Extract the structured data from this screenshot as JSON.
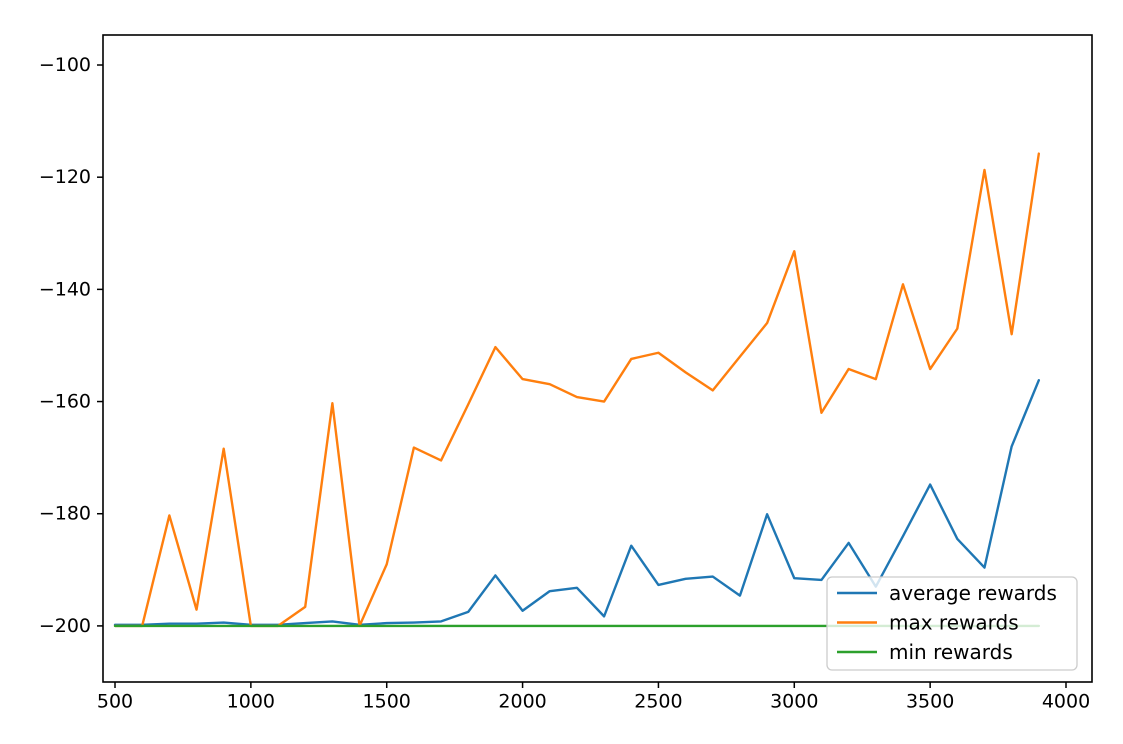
{
  "figure": {
    "background": "#ffffff",
    "title": ""
  },
  "chart_data": {
    "type": "line",
    "title": "",
    "xlabel": "",
    "ylabel": "",
    "grid": false,
    "background": "#ffffff",
    "x": [
      500,
      600,
      700,
      800,
      900,
      1000,
      1100,
      1200,
      1300,
      1400,
      1500,
      1600,
      1700,
      1800,
      1900,
      2000,
      2100,
      2200,
      2300,
      2400,
      2500,
      2600,
      2700,
      2800,
      2900,
      3000,
      3100,
      3200,
      3300,
      3400,
      3500,
      3600,
      3700,
      3800,
      3900
    ],
    "series": [
      {
        "name": "average rewards",
        "color": "#1f77b4",
        "values": [
          -199.8,
          -199.8,
          -199.6,
          -199.6,
          -199.4,
          -199.8,
          -199.8,
          -199.5,
          -199.2,
          -199.8,
          -199.5,
          -199.4,
          -199.2,
          -197.5,
          -191.0,
          -197.3,
          -193.8,
          -193.2,
          -198.3,
          -185.7,
          -192.7,
          -191.6,
          -191.2,
          -194.6,
          -180.1,
          -191.5,
          -191.8,
          -185.2,
          -193.0,
          -184.0,
          -174.8,
          -184.5,
          -189.6,
          -168.0,
          -156.2
        ]
      },
      {
        "name": "max rewards",
        "color": "#ff7f0e",
        "values": [
          -200.0,
          -200.0,
          -180.3,
          -197.1,
          -168.4,
          -200.0,
          -200.0,
          -196.6,
          -160.3,
          -200.0,
          -189.0,
          -168.2,
          -170.5,
          -160.5,
          -150.3,
          -156.0,
          -156.9,
          -159.2,
          -160.0,
          -152.4,
          -151.3,
          -154.8,
          -158.0,
          -152.0,
          -146.0,
          -133.2,
          -162.0,
          -154.2,
          -156.0,
          -139.1,
          -154.2,
          -147.0,
          -118.7,
          -148.0,
          -115.8
        ]
      },
      {
        "name": "min rewards",
        "color": "#2ca02c",
        "values": [
          -200,
          -200,
          -200,
          -200,
          -200,
          -200,
          -200,
          -200,
          -200,
          -200,
          -200,
          -200,
          -200,
          -200,
          -200,
          -200,
          -200,
          -200,
          -200,
          -200,
          -200,
          -200,
          -200,
          -200,
          -200,
          -200,
          -200,
          -200,
          -200,
          -200,
          -200,
          -200,
          -200,
          -200,
          -200
        ]
      }
    ],
    "xlim": [
      455.8,
      4095.7
    ],
    "ylim": [
      -210.0,
      -94.65
    ],
    "xticks": {
      "values": [
        500,
        1000,
        1500,
        2000,
        2500,
        3000,
        3500,
        4000
      ],
      "labels": [
        "500",
        "1000",
        "1500",
        "2000",
        "2500",
        "3000",
        "3500",
        "4000"
      ]
    },
    "yticks": {
      "values": [
        -100,
        -120,
        -140,
        -160,
        -180,
        -200
      ],
      "labels": [
        "−100",
        "−120",
        "−140",
        "−160",
        "−180",
        "−200"
      ]
    },
    "legend": {
      "position": "lower right",
      "entries": [
        "average rewards",
        "max rewards",
        "min rewards"
      ]
    },
    "axis_color": "#000000",
    "legend_border_color": "#cccccc",
    "legend_background": "rgba(255,255,255,0.8)"
  }
}
